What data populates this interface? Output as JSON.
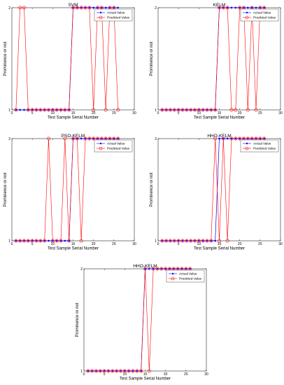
{
  "chart_data": [
    {
      "type": "line",
      "title": "SVM",
      "xlabel": "Test Sample Serial Number",
      "ylabel": "Prominence or not",
      "xlim": [
        0,
        30
      ],
      "ylim": [
        1,
        2
      ],
      "xticks": [
        0,
        5,
        10,
        15,
        20,
        25,
        30
      ],
      "yticks": [
        1,
        2
      ],
      "grid": false,
      "legend_position": "top-right",
      "x": [
        1,
        2,
        3,
        4,
        5,
        6,
        7,
        8,
        9,
        10,
        11,
        12,
        13,
        14,
        15,
        16,
        17,
        18,
        19,
        20,
        21,
        22,
        23,
        24,
        25,
        26
      ],
      "series": [
        {
          "name": "Actual Value",
          "color": "#0000ff",
          "marker": "dot",
          "values": [
            1,
            1,
            1,
            1,
            1,
            1,
            1,
            1,
            1,
            1,
            1,
            1,
            1,
            1,
            2,
            2,
            2,
            2,
            2,
            2,
            2,
            2,
            2,
            2,
            2,
            2
          ]
        },
        {
          "name": "Predicted Value",
          "color": "#ff0000",
          "marker": "circle",
          "values": [
            1,
            2,
            2,
            1,
            1,
            1,
            1,
            1,
            1,
            1,
            1,
            1,
            1,
            1,
            2,
            2,
            2,
            2,
            2,
            1,
            2,
            2,
            1,
            2,
            2,
            1
          ]
        }
      ]
    },
    {
      "type": "line",
      "title": "KELM",
      "xlabel": "Test Sample Serial Number",
      "ylabel": "Prominence or not",
      "xlim": [
        0,
        30
      ],
      "ylim": [
        1,
        2
      ],
      "xticks": [
        0,
        5,
        10,
        15,
        20,
        25,
        30
      ],
      "yticks": [
        1,
        2
      ],
      "grid": false,
      "legend_position": "top-right",
      "x": [
        1,
        2,
        3,
        4,
        5,
        6,
        7,
        8,
        9,
        10,
        11,
        12,
        13,
        14,
        15,
        16,
        17,
        18,
        19,
        20,
        21,
        22,
        23,
        24,
        25,
        26
      ],
      "series": [
        {
          "name": "Actual Value",
          "color": "#0000ff",
          "marker": "dot",
          "values": [
            1,
            1,
            1,
            1,
            1,
            1,
            1,
            1,
            1,
            1,
            1,
            1,
            1,
            1,
            2,
            2,
            2,
            2,
            2,
            2,
            2,
            2,
            2,
            2,
            2,
            2
          ]
        },
        {
          "name": "Predicted Value",
          "color": "#ff0000",
          "marker": "circle",
          "values": [
            1,
            1,
            1,
            1,
            1,
            1,
            1,
            1,
            1,
            1,
            1,
            1,
            1,
            1,
            2,
            2,
            2,
            1,
            1,
            2,
            2,
            1,
            2,
            1,
            2,
            2
          ]
        }
      ]
    },
    {
      "type": "line",
      "title": "PSO-KELM",
      "xlabel": "Test Sample Serial Number",
      "ylabel": "Prominence or not",
      "xlim": [
        0,
        30
      ],
      "ylim": [
        1,
        2
      ],
      "xticks": [
        0,
        5,
        10,
        15,
        20,
        25,
        30
      ],
      "yticks": [
        1,
        2
      ],
      "grid": false,
      "legend_position": "top-right",
      "x": [
        1,
        2,
        3,
        4,
        5,
        6,
        7,
        8,
        9,
        10,
        11,
        12,
        13,
        14,
        15,
        16,
        17,
        18,
        19,
        20,
        21,
        22,
        23,
        24,
        25,
        26
      ],
      "series": [
        {
          "name": "Actual Value",
          "color": "#0000ff",
          "marker": "dot",
          "values": [
            1,
            1,
            1,
            1,
            1,
            1,
            1,
            1,
            1,
            1,
            1,
            1,
            1,
            1,
            2,
            2,
            2,
            2,
            2,
            2,
            2,
            2,
            2,
            2,
            2,
            2
          ]
        },
        {
          "name": "Predicted Value",
          "color": "#ff0000",
          "marker": "circle",
          "values": [
            1,
            1,
            1,
            1,
            1,
            1,
            1,
            1,
            2,
            1,
            1,
            1,
            2,
            1,
            2,
            2,
            1,
            2,
            2,
            2,
            2,
            2,
            2,
            2,
            2,
            2
          ]
        }
      ]
    },
    {
      "type": "line",
      "title": "HHO-KELM",
      "xlabel": "Test Sample Serial Number",
      "ylabel": "Prominence or not",
      "xlim": [
        0,
        30
      ],
      "ylim": [
        1,
        2
      ],
      "xticks": [
        0,
        5,
        10,
        15,
        20,
        25,
        30
      ],
      "yticks": [
        1,
        2
      ],
      "grid": false,
      "legend_position": "top-right",
      "x": [
        1,
        2,
        3,
        4,
        5,
        6,
        7,
        8,
        9,
        10,
        11,
        12,
        13,
        14,
        15,
        16,
        17,
        18,
        19,
        20,
        21,
        22,
        23,
        24,
        25,
        26
      ],
      "series": [
        {
          "name": "Actual Value",
          "color": "#0000ff",
          "marker": "dot",
          "values": [
            1,
            1,
            1,
            1,
            1,
            1,
            1,
            1,
            1,
            1,
            1,
            1,
            1,
            1,
            2,
            2,
            2,
            2,
            2,
            2,
            2,
            2,
            2,
            2,
            2,
            2
          ]
        },
        {
          "name": "Predicted Value",
          "color": "#ff0000",
          "marker": "circle",
          "values": [
            1,
            1,
            1,
            1,
            1,
            1,
            1,
            1,
            1,
            1,
            1,
            1,
            1,
            2,
            1,
            2,
            1,
            2,
            2,
            2,
            2,
            2,
            2,
            2,
            2,
            2
          ]
        }
      ]
    },
    {
      "type": "line",
      "title": "HHO-KELM",
      "xlabel": "Test Sample Serial Number",
      "ylabel": "Prominence or not",
      "xlim": [
        0,
        30
      ],
      "ylim": [
        1,
        2
      ],
      "xticks": [
        0,
        5,
        10,
        15,
        20,
        25,
        30
      ],
      "yticks": [
        1,
        2
      ],
      "grid": false,
      "legend_position": "top-right",
      "x": [
        1,
        2,
        3,
        4,
        5,
        6,
        7,
        8,
        9,
        10,
        11,
        12,
        13,
        14,
        15,
        16,
        17,
        18,
        19,
        20,
        21,
        22,
        23,
        24,
        25,
        26
      ],
      "series": [
        {
          "name": "Actual Value",
          "color": "#0000ff",
          "marker": "dot",
          "values": [
            1,
            1,
            1,
            1,
            1,
            1,
            1,
            1,
            1,
            1,
            1,
            1,
            1,
            1,
            2,
            2,
            2,
            2,
            2,
            2,
            2,
            2,
            2,
            2,
            2,
            2
          ]
        },
        {
          "name": "Predicted Value",
          "color": "#ff0000",
          "marker": "circle",
          "values": [
            1,
            1,
            1,
            1,
            1,
            1,
            1,
            1,
            1,
            1,
            1,
            1,
            1,
            1,
            2,
            1,
            2,
            2,
            2,
            2,
            2,
            2,
            2,
            2,
            2,
            2
          ]
        }
      ]
    }
  ]
}
